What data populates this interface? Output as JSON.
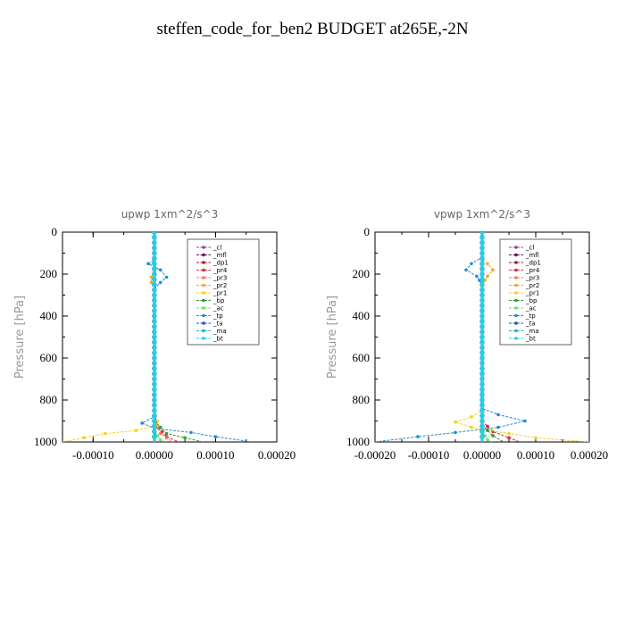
{
  "title": "steffen_code_for_ben2  BUDGET at265E,-2N",
  "colors": {
    "_cl": "#8e44ad",
    "_mfl": "#6a0d5a",
    "_dp1": "#9b1b3a",
    "_pr4": "#d62a3a",
    "_pr3": "#ff6f61",
    "_pr2": "#f5a623",
    "_pr1": "#f7d21c",
    "_bp": "#2e9e3a",
    "_ac": "#6be36b",
    "_tp": "#1f8fce",
    "_ta": "#2b4fb8",
    "_ma": "#20b2c8",
    "_bt": "#20d0e8"
  },
  "chart_data": [
    {
      "type": "line",
      "title": "upwp   1xm^2/s^3",
      "ylabel": "Pressure [hPa]",
      "xlabel": "",
      "xlim": [
        -0.00015,
        0.0002
      ],
      "ylim": [
        1000,
        0
      ],
      "xticks": [
        -0.0001,
        0.0,
        0.0001,
        0.0002
      ],
      "xtick_labels": [
        "-0.00010",
        "0.00000",
        "0.00010",
        "0.00020"
      ],
      "yticks": [
        0,
        200,
        400,
        600,
        800,
        1000
      ],
      "ytick_labels": [
        "0",
        "200",
        "400",
        "600",
        "800",
        "1000"
      ],
      "legend_placement": "top-right",
      "series": [
        {
          "name": "_cl",
          "points": [
            [
              0,
              0
            ],
            [
              0,
              1000
            ]
          ]
        },
        {
          "name": "_mfl",
          "points": [
            [
              0,
              0
            ],
            [
              0,
              1000
            ]
          ]
        },
        {
          "name": "_dp1",
          "points": [
            [
              0,
              0
            ],
            [
              0,
              1000
            ]
          ]
        },
        {
          "name": "_pr4",
          "points": [
            [
              0,
              0
            ],
            [
              0,
              850
            ],
            [
              5e-06,
              930
            ],
            [
              2e-05,
              975
            ],
            [
              4e-05,
              1000
            ]
          ]
        },
        {
          "name": "_pr3",
          "points": [
            [
              0,
              0
            ],
            [
              0,
              900
            ],
            [
              1e-05,
              960
            ],
            [
              3e-05,
              1000
            ]
          ]
        },
        {
          "name": "_pr2",
          "points": [
            [
              0,
              0
            ],
            [
              0,
              190
            ],
            [
              -5e-06,
              215
            ],
            [
              -5e-06,
              240
            ],
            [
              0,
              270
            ],
            [
              0,
              1000
            ]
          ]
        },
        {
          "name": "_pr1",
          "points": [
            [
              0,
              0
            ],
            [
              0,
              880
            ],
            [
              5e-06,
              900
            ],
            [
              5e-06,
              920
            ],
            [
              -3e-05,
              945
            ],
            [
              -8e-05,
              960
            ],
            [
              -0.00015,
              1000
            ]
          ]
        },
        {
          "name": "_bp",
          "points": [
            [
              0,
              0
            ],
            [
              0,
              900
            ],
            [
              2e-05,
              960
            ],
            [
              5e-05,
              980
            ],
            [
              8e-05,
              1000
            ]
          ]
        },
        {
          "name": "_ac",
          "points": [
            [
              0,
              0
            ],
            [
              0,
              950
            ],
            [
              1e-05,
              990
            ],
            [
              2e-05,
              1000
            ]
          ]
        },
        {
          "name": "_tp",
          "points": [
            [
              0,
              0
            ],
            [
              0,
              130
            ],
            [
              -1e-05,
              150
            ],
            [
              1e-05,
              180
            ],
            [
              2e-05,
              215
            ],
            [
              1e-05,
              240
            ],
            [
              0,
              270
            ],
            [
              0,
              880
            ],
            [
              -2e-05,
              910
            ],
            [
              0,
              935
            ],
            [
              6e-05,
              955
            ],
            [
              0.0001,
              975
            ],
            [
              0.00016,
              1000
            ]
          ]
        },
        {
          "name": "_ta",
          "points": [
            [
              0,
              0
            ],
            [
              0,
              1000
            ]
          ]
        },
        {
          "name": "_ma",
          "points": [
            [
              0,
              0
            ],
            [
              0,
              1000
            ]
          ]
        },
        {
          "name": "_bt",
          "points": [
            [
              0,
              0
            ],
            [
              0,
              1000
            ]
          ]
        }
      ],
      "legend": [
        "_cl",
        "_mfl",
        "_dp1",
        "_pr4",
        "_pr3",
        "_pr2",
        "_pr1",
        "_bp",
        "_ac",
        "_tp",
        "_ta",
        "_ma",
        "_bt"
      ]
    },
    {
      "type": "line",
      "title": "vpwp   1xm^2/s^3",
      "ylabel": "Pressure [hPa]",
      "xlabel": "",
      "xlim": [
        -0.0002,
        0.0002
      ],
      "ylim": [
        1000,
        0
      ],
      "xticks": [
        -0.0002,
        -0.0001,
        0.0,
        0.0001,
        0.0002
      ],
      "xtick_labels": [
        "-0.00020",
        "-0.00010",
        "0.00000",
        "0.00010",
        "0.00020"
      ],
      "yticks": [
        0,
        200,
        400,
        600,
        800,
        1000
      ],
      "ytick_labels": [
        "0",
        "200",
        "400",
        "600",
        "800",
        "1000"
      ],
      "legend_placement": "top-right",
      "series": [
        {
          "name": "_cl",
          "points": [
            [
              0,
              0
            ],
            [
              0,
              1000
            ]
          ]
        },
        {
          "name": "_mfl",
          "points": [
            [
              0,
              0
            ],
            [
              0,
              1000
            ]
          ]
        },
        {
          "name": "_dp1",
          "points": [
            [
              0,
              0
            ],
            [
              0,
              1000
            ]
          ]
        },
        {
          "name": "_pr4",
          "points": [
            [
              0,
              0
            ],
            [
              0,
              900
            ],
            [
              2e-05,
              950
            ],
            [
              5e-05,
              980
            ],
            [
              7e-05,
              1000
            ]
          ]
        },
        {
          "name": "_pr3",
          "points": [
            [
              0,
              0
            ],
            [
              0,
              920
            ],
            [
              2e-05,
              970
            ],
            [
              4e-05,
              1000
            ]
          ]
        },
        {
          "name": "_pr2",
          "points": [
            [
              0,
              0
            ],
            [
              0,
              130
            ],
            [
              1e-05,
              150
            ],
            [
              2e-05,
              180
            ],
            [
              1e-05,
              210
            ],
            [
              0,
              250
            ],
            [
              0,
              1000
            ]
          ]
        },
        {
          "name": "_pr1",
          "points": [
            [
              0,
              0
            ],
            [
              0,
              850
            ],
            [
              -2e-05,
              880
            ],
            [
              -5e-05,
              905
            ],
            [
              -2e-05,
              930
            ],
            [
              5e-05,
              960
            ],
            [
              0.0001,
              980
            ],
            [
              0.0002,
              1000
            ]
          ]
        },
        {
          "name": "_bp",
          "points": [
            [
              0,
              0
            ],
            [
              0,
              920
            ],
            [
              2e-05,
              970
            ],
            [
              4e-05,
              1000
            ]
          ]
        },
        {
          "name": "_ac",
          "points": [
            [
              0,
              0
            ],
            [
              0,
              950
            ],
            [
              1e-05,
              990
            ],
            [
              2e-05,
              1000
            ]
          ]
        },
        {
          "name": "_tp",
          "points": [
            [
              0,
              0
            ],
            [
              0,
              120
            ],
            [
              -2e-05,
              150
            ],
            [
              -3e-05,
              180
            ],
            [
              -1e-05,
              210
            ],
            [
              0,
              250
            ],
            [
              0,
              840
            ],
            [
              3e-05,
              870
            ],
            [
              8e-05,
              900
            ],
            [
              3e-05,
              930
            ],
            [
              -5e-05,
              955
            ],
            [
              -0.00012,
              975
            ],
            [
              -0.0002,
              1000
            ]
          ]
        },
        {
          "name": "_ta",
          "points": [
            [
              0,
              0
            ],
            [
              0,
              1000
            ]
          ]
        },
        {
          "name": "_ma",
          "points": [
            [
              0,
              0
            ],
            [
              0,
              1000
            ]
          ]
        },
        {
          "name": "_bt",
          "points": [
            [
              0,
              0
            ],
            [
              0,
              1000
            ]
          ]
        }
      ],
      "legend": [
        "_cl",
        "_mfl",
        "_dp1",
        "_pr4",
        "_pr3",
        "_pr2",
        "_pr1",
        "_bp",
        "_ac",
        "_tp",
        "_ta",
        "_ma",
        "_bt"
      ]
    }
  ]
}
